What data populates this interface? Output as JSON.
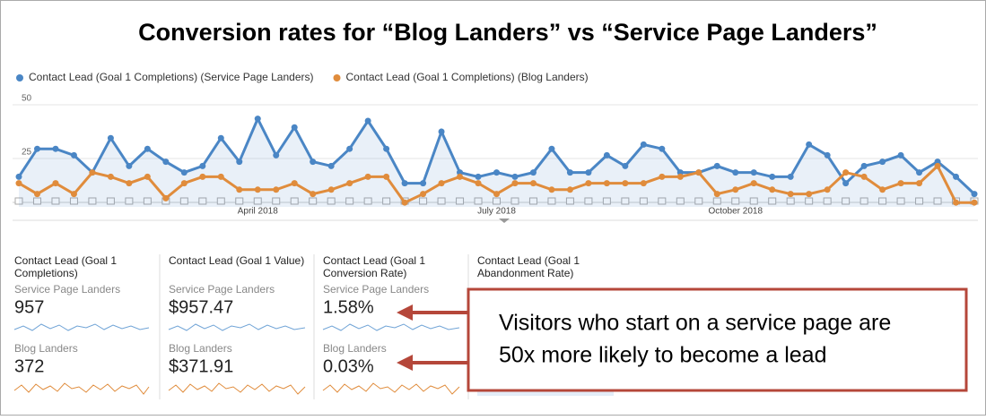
{
  "chart_data": {
    "type": "line",
    "title": "Conversion rates for “Blog Landers” vs “Service Page Landers”",
    "categories": [
      null,
      null,
      null,
      null,
      null,
      null,
      null,
      null,
      null,
      null,
      null,
      null,
      null,
      "April 2018",
      null,
      null,
      null,
      null,
      null,
      null,
      null,
      null,
      null,
      null,
      null,
      null,
      "July 2018",
      null,
      null,
      null,
      null,
      null,
      null,
      null,
      null,
      null,
      null,
      null,
      null,
      "October 2018",
      null,
      null,
      null,
      null,
      null,
      null,
      null,
      null,
      null,
      null,
      null,
      null,
      null
    ],
    "series": [
      {
        "name": "Contact Lead (Goal 1 Completions) (Service Page Landers)",
        "color": "#4a86c5",
        "area": true,
        "values": [
          14,
          27,
          27,
          24,
          16,
          32,
          19,
          27,
          21,
          16,
          19,
          32,
          21,
          41,
          24,
          37,
          21,
          19,
          27,
          40,
          27,
          11,
          11,
          35,
          16,
          14,
          16,
          14,
          16,
          27,
          16,
          16,
          24,
          19,
          29,
          27,
          16,
          16,
          19,
          16,
          16,
          14,
          14,
          29,
          24,
          11,
          19,
          21,
          24,
          16,
          21,
          14,
          6
        ]
      },
      {
        "name": "Contact Lead (Goal 1 Completions) (Blog Landers)",
        "color": "#e08c3c",
        "area": false,
        "values": [
          11,
          6,
          11,
          6,
          16,
          14,
          11,
          14,
          4,
          11,
          14,
          14,
          8,
          8,
          8,
          11,
          6,
          8,
          11,
          14,
          14,
          2,
          6,
          11,
          14,
          11,
          6,
          11,
          11,
          8,
          8,
          11,
          11,
          11,
          11,
          14,
          14,
          16,
          6,
          8,
          11,
          8,
          6,
          6,
          8,
          16,
          14,
          8,
          11,
          11,
          19,
          2,
          2
        ]
      }
    ],
    "ylim": [
      0,
      50
    ],
    "yticks": [
      25,
      50
    ],
    "grid": true
  },
  "scorecards": [
    {
      "header": [
        "Contact Lead (Goal 1",
        "Completions)"
      ],
      "rows": [
        {
          "label": "Service Page Landers",
          "value": "957"
        },
        {
          "label": "Blog Landers",
          "value": "372"
        }
      ]
    },
    {
      "header": [
        "Contact Lead (Goal 1 Value)"
      ],
      "rows": [
        {
          "label": "Service Page Landers",
          "value": "$957.47"
        },
        {
          "label": "Blog Landers",
          "value": "$371.91"
        }
      ]
    },
    {
      "header": [
        "Contact Lead (Goal 1",
        "Conversion Rate)"
      ],
      "rows": [
        {
          "label": "Service Page Landers",
          "value": "1.58%"
        },
        {
          "label": "Blog Landers",
          "value": "0.03%"
        }
      ]
    },
    {
      "header": [
        "Contact Lead (Goal 1",
        "Abandonment Rate)"
      ],
      "rows": []
    }
  ],
  "callout": {
    "lines": [
      "Visitors who start on a service page are",
      "50x more likely to become a lead"
    ]
  }
}
